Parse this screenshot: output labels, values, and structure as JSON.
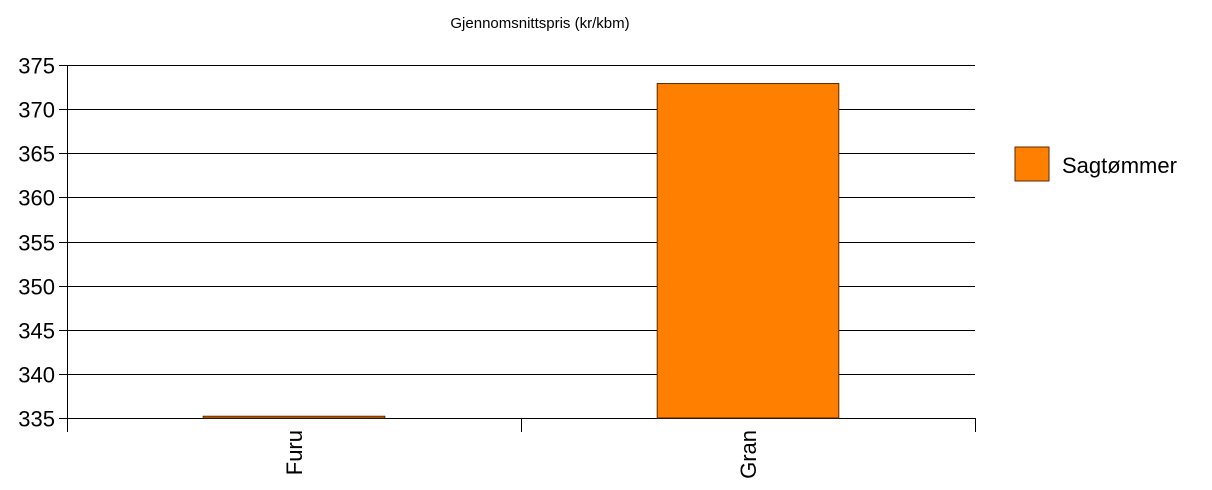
{
  "chart_data": {
    "type": "bar",
    "title": "Gjennomsnittspris (kr/kbm)",
    "categories": [
      "Furu",
      "Gran"
    ],
    "series": [
      {
        "name": "Sagtømmer",
        "values": [
          335.2,
          372.9
        ],
        "color": "#ff8000"
      }
    ],
    "ylim": [
      335,
      375
    ],
    "yticks": [
      335,
      340,
      345,
      350,
      355,
      360,
      365,
      370,
      375
    ],
    "xlabel": "",
    "ylabel": "",
    "grid": true,
    "legend_position": "right"
  }
}
